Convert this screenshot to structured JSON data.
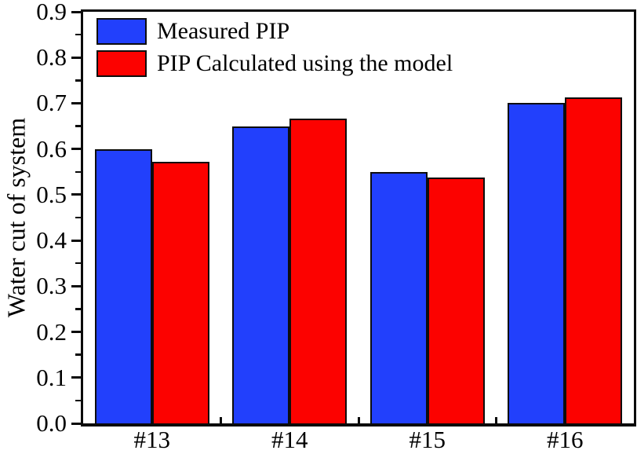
{
  "chart_data": {
    "type": "bar",
    "title": "",
    "categories": [
      "#13",
      "#14",
      "#15",
      "#16"
    ],
    "series": [
      {
        "name": "Measured PIP",
        "color": "#2240fc",
        "values": [
          0.6,
          0.65,
          0.55,
          0.7
        ]
      },
      {
        "name": "PIP Calculated using the model",
        "color": "#fc0200",
        "values": [
          0.572,
          0.667,
          0.537,
          0.713
        ]
      }
    ],
    "xlabel": "",
    "ylabel": "Water cut of system",
    "ylim": [
      0.0,
      0.9
    ],
    "ytick_step": 0.1,
    "yminor_step": 0.05,
    "ytick_labels": [
      "0.0",
      "0.1",
      "0.2",
      "0.3",
      "0.4",
      "0.5",
      "0.6",
      "0.7",
      "0.8",
      "0.9"
    ],
    "legend_position": "top-left",
    "grid": false,
    "axis_color": "#0a0a0a",
    "bar_border_color": "#0d0d0d",
    "background": "#ffffff"
  }
}
